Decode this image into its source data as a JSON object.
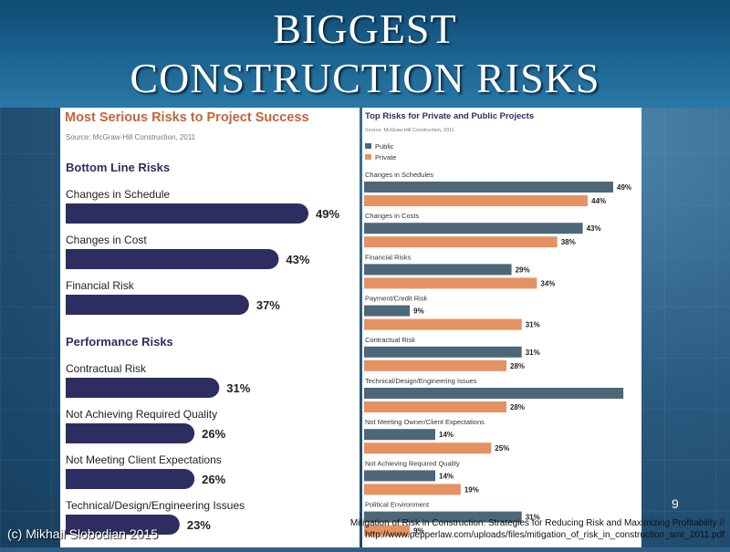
{
  "slide": {
    "title_line1": "BIGGEST",
    "title_line2": "CONSTRUCTION RISKS",
    "page_number": "9",
    "copyright": "(c) Mikhail Slobodian 2015",
    "citation_line1": "Mitigation of Risk in Construction: Strategies for Reducing Risk and Maximizing Profitability //",
    "citation_line2": "http://www.pepperlaw.com/uploads/files/mitigation_of_risk_in_construction_smr_2011.pdf"
  },
  "colors": {
    "left_bar": "#2e2d62",
    "left_title": "#c2653a",
    "left_heading": "#2e2d62",
    "public": "#4d6779",
    "private": "#e49262",
    "right_title": "#2e2d62"
  },
  "chart_data": [
    {
      "type": "bar",
      "orientation": "horizontal",
      "title": "Most Serious Risks to Project Success",
      "source": "Source: McGraw-Hill Construction, 2011",
      "xlim": [
        0,
        55
      ],
      "groups": [
        {
          "heading": "Bottom Line Risks",
          "categories": [
            "Changes in Schedule",
            "Changes in Cost",
            "Financial Risk"
          ],
          "values": [
            49,
            43,
            37
          ],
          "labels": [
            "49%",
            "43%",
            "37%"
          ]
        },
        {
          "heading": "Performance Risks",
          "categories": [
            "Contractual Risk",
            "Not Achieving Required Quality",
            "Not Meeting Client Expectations",
            "Technical/Design/Engineering Issues"
          ],
          "values": [
            31,
            26,
            26,
            23
          ],
          "labels": [
            "31%",
            "26%",
            "26%",
            "23%"
          ]
        }
      ]
    },
    {
      "type": "bar",
      "orientation": "horizontal",
      "title": "Top Risks for Private and Public Projects",
      "source": "Source: McGraw-Hill Construction, 2011",
      "legend": [
        "Public",
        "Private"
      ],
      "xlim": [
        0,
        54
      ],
      "categories": [
        "Changes in Schedules",
        "Changes in Costs",
        "Financial Risks",
        "Payment/Credit Risk",
        "Contractual Risk",
        "Technical/Design/Engineering Issues",
        "Not Meeting Owner/Client Expectations",
        "Not Achieving Required Quality",
        "Political Environment"
      ],
      "series": [
        {
          "name": "Public",
          "values": [
            49,
            43,
            29,
            9,
            31,
            51,
            14,
            14,
            31
          ],
          "labels": [
            "49%",
            "43%",
            "29%",
            "9%",
            "31%",
            "",
            "14%",
            "14%",
            "31%"
          ]
        },
        {
          "name": "Private",
          "values": [
            44,
            38,
            34,
            31,
            28,
            28,
            25,
            19,
            9
          ],
          "labels": [
            "44%",
            "38%",
            "34%",
            "31%",
            "28%",
            "28%",
            "25%",
            "19%",
            "9%"
          ]
        }
      ]
    }
  ]
}
